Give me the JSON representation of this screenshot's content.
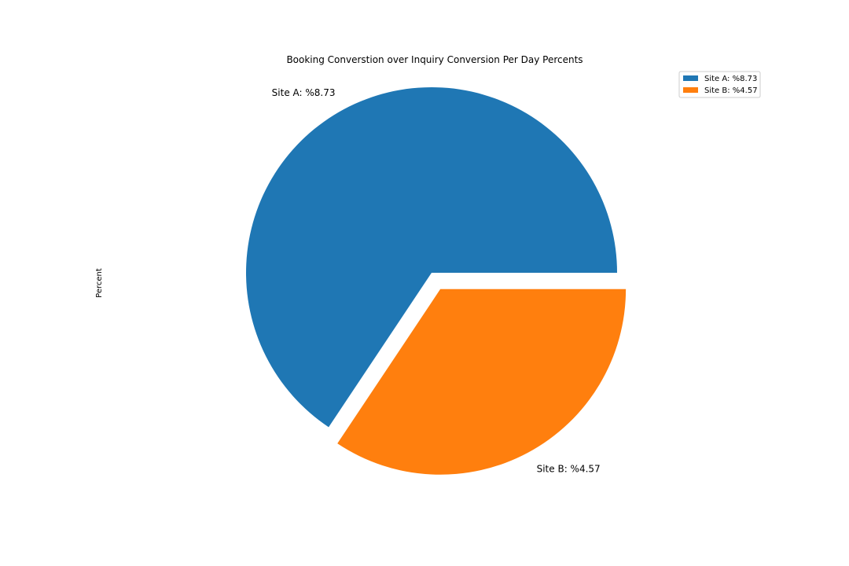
{
  "chart_data": {
    "type": "pie",
    "title": "Booking Converstion over Inquiry Conversion Per Day Percents",
    "ylabel": "Percent",
    "labels": [
      "Site A: %8.73",
      "Site B: %4.57"
    ],
    "values": [
      8.73,
      4.57
    ],
    "colors": [
      "#1f77b4",
      "#ff7f0e"
    ],
    "explode": [
      0,
      0.1
    ],
    "legend": {
      "position": "upper right",
      "entries": [
        "Site A: %8.73",
        "Site B: %4.57"
      ]
    }
  }
}
